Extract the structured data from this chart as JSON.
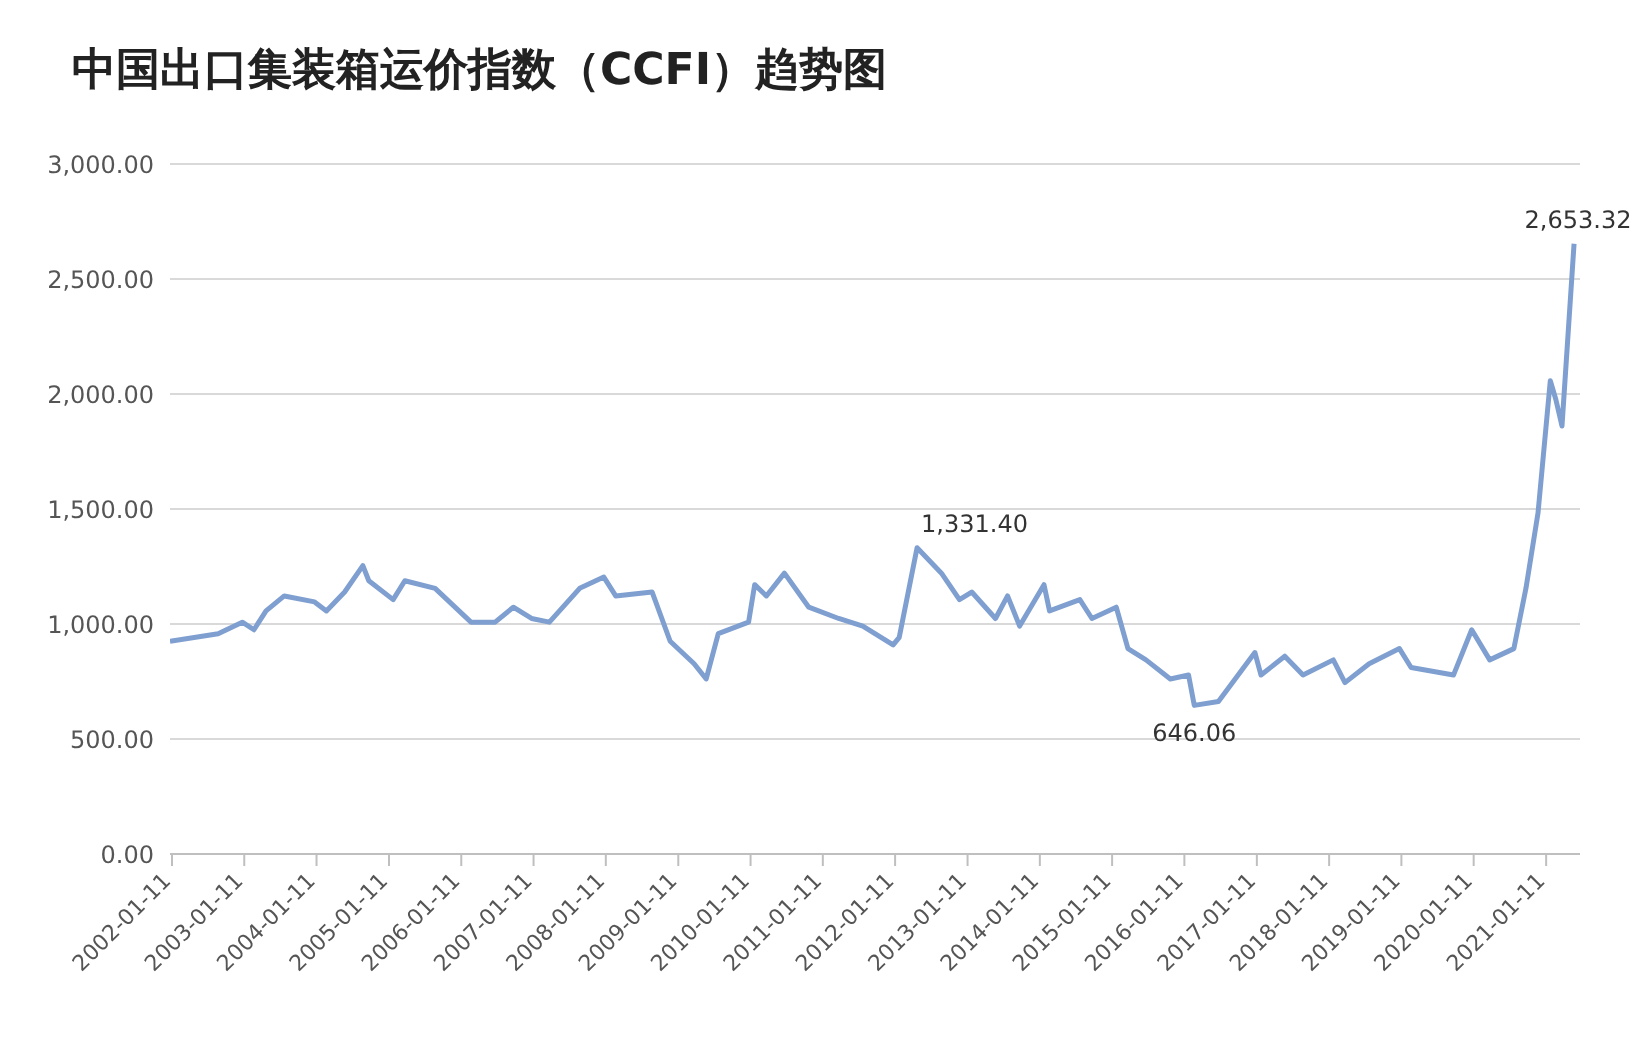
{
  "chart_data": {
    "type": "line",
    "title": "中国出口集装箱运价指数（CCFI）趋势图",
    "x": [
      "2002-01",
      "2002-09",
      "2003-01",
      "2003-03",
      "2003-05",
      "2003-08",
      "2004-01",
      "2004-03",
      "2004-06",
      "2004-09",
      "2004-10",
      "2005-02",
      "2005-04",
      "2005-09",
      "2006-03",
      "2006-07",
      "2006-10",
      "2007-01",
      "2007-04",
      "2007-09",
      "2008-01",
      "2008-03",
      "2008-09",
      "2008-12",
      "2009-04",
      "2009-06",
      "2009-08",
      "2010-01",
      "2010-02",
      "2010-04",
      "2010-07",
      "2010-11",
      "2011-04",
      "2011-08",
      "2012-01",
      "2012-02",
      "2012-05",
      "2012-09",
      "2012-12",
      "2013-02",
      "2013-06",
      "2013-08",
      "2013-10",
      "2014-02",
      "2014-03",
      "2014-08",
      "2014-10",
      "2015-02",
      "2015-04",
      "2015-07",
      "2015-11",
      "2016-02",
      "2016-03",
      "2016-07",
      "2017-01",
      "2017-02",
      "2017-06",
      "2017-09",
      "2018-02",
      "2018-04",
      "2018-08",
      "2019-01",
      "2019-03",
      "2019-10",
      "2020-01",
      "2020-04",
      "2020-08",
      "2020-10",
      "2020-12",
      "2021-02",
      "2021-03",
      "2021-04",
      "2021-06"
    ],
    "series": [
      {
        "color": "#7f9fd0",
        "values": [
          925,
          958,
          1008,
          975,
          1057,
          1122,
          1096,
          1057,
          1139,
          1254,
          1188,
          1106,
          1188,
          1155,
          1008,
          1008,
          1073,
          1024,
          1008,
          1155,
          1204,
          1122,
          1139,
          925,
          827,
          761,
          958,
          1008,
          1171,
          1122,
          1221,
          1073,
          1024,
          991,
          909,
          942,
          1331.4,
          1221,
          1106,
          1139,
          1024,
          1122,
          991,
          1171,
          1057,
          1106,
          1024,
          1073,
          893,
          844,
          761,
          778,
          646.06,
          663,
          876,
          778,
          860,
          778,
          844,
          745,
          827,
          893,
          811,
          778,
          975,
          844,
          893,
          1155,
          1483,
          2058,
          1976,
          1861,
          2653.32
        ],
        "value_labels": [
          null,
          null,
          null,
          null,
          null,
          null,
          null,
          null,
          null,
          null,
          null,
          null,
          null,
          null,
          null,
          null,
          null,
          null,
          null,
          null,
          null,
          null,
          null,
          null,
          null,
          null,
          null,
          null,
          null,
          null,
          null,
          null,
          null,
          null,
          null,
          null,
          "1,331.40",
          null,
          null,
          null,
          null,
          null,
          null,
          null,
          null,
          null,
          null,
          null,
          null,
          null,
          null,
          null,
          "646.06",
          null,
          null,
          null,
          null,
          null,
          null,
          null,
          null,
          null,
          null,
          null,
          null,
          null,
          null,
          null,
          null,
          null,
          null,
          null,
          "2,653.32"
        ]
      }
    ],
    "xlim": [
      "2002-01",
      "2021-07"
    ],
    "xticks": [
      "2002-01-11",
      "2003-01-11",
      "2004-01-11",
      "2005-01-11",
      "2006-01-11",
      "2007-01-11",
      "2008-01-11",
      "2009-01-11",
      "2010-01-11",
      "2011-01-11",
      "2012-01-11",
      "2013-01-11",
      "2014-01-11",
      "2015-01-11",
      "2016-01-11",
      "2017-01-11",
      "2018-01-11",
      "2019-01-11",
      "2020-01-11",
      "2021-01-11"
    ],
    "ylim": [
      0,
      3000
    ],
    "yticks": [
      {
        "value": 0,
        "label": "0.00"
      },
      {
        "value": 500,
        "label": "500.00"
      },
      {
        "value": 1000,
        "label": "1,000.00"
      },
      {
        "value": 1500,
        "label": "1,500.00"
      },
      {
        "value": 2000,
        "label": "2,000.00"
      },
      {
        "value": 2500,
        "label": "2,500.00"
      },
      {
        "value": 3000,
        "label": "3,000.00"
      }
    ],
    "grid": "y",
    "legend": false,
    "marker": "none",
    "line_style": "solid"
  }
}
